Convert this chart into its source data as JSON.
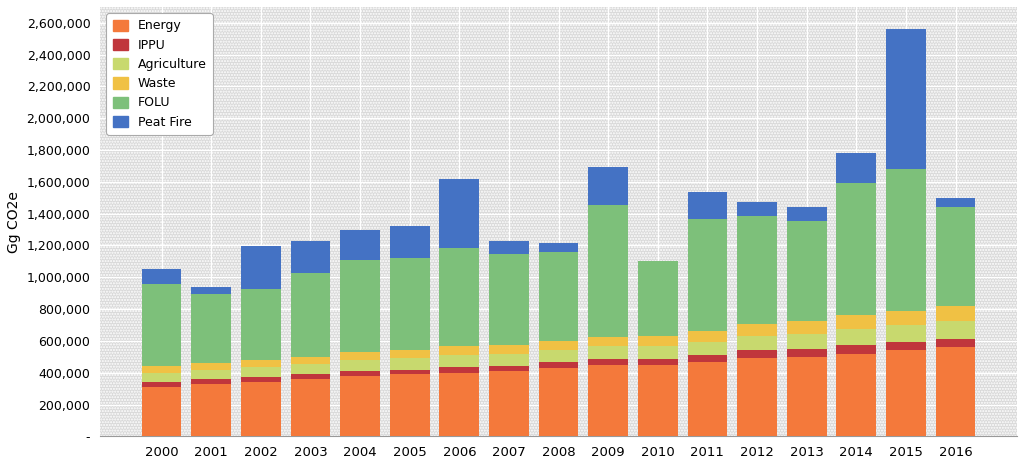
{
  "years": [
    2000,
    2001,
    2002,
    2003,
    2004,
    2005,
    2006,
    2007,
    2008,
    2009,
    2010,
    2011,
    2012,
    2013,
    2014,
    2015,
    2016
  ],
  "energy": [
    310000,
    330000,
    340000,
    360000,
    380000,
    390000,
    400000,
    410000,
    430000,
    450000,
    450000,
    470000,
    490000,
    500000,
    520000,
    540000,
    560000
  ],
  "ippu": [
    30000,
    30000,
    30000,
    30000,
    30000,
    30000,
    35000,
    35000,
    35000,
    35000,
    35000,
    40000,
    50000,
    50000,
    55000,
    55000,
    55000
  ],
  "agriculture": [
    60000,
    60000,
    65000,
    65000,
    70000,
    70000,
    75000,
    75000,
    75000,
    80000,
    80000,
    85000,
    90000,
    95000,
    100000,
    105000,
    110000
  ],
  "waste": [
    40000,
    42000,
    43000,
    44000,
    50000,
    52000,
    55000,
    57000,
    58000,
    60000,
    65000,
    70000,
    75000,
    80000,
    85000,
    90000,
    95000
  ],
  "folu": [
    520000,
    430000,
    450000,
    530000,
    580000,
    580000,
    620000,
    570000,
    560000,
    830000,
    470000,
    700000,
    680000,
    630000,
    830000,
    890000,
    620000
  ],
  "peat_fire": [
    90000,
    50000,
    270000,
    200000,
    190000,
    200000,
    430000,
    80000,
    60000,
    240000,
    0,
    170000,
    90000,
    90000,
    190000,
    880000,
    60000
  ],
  "colors": {
    "energy": "#F4793B",
    "ippu": "#C0363C",
    "agriculture": "#C8D96E",
    "waste": "#F0C144",
    "folu": "#7DC07A",
    "peat_fire": "#4472C4"
  },
  "legend_labels": [
    "Energy",
    "IPPU",
    "Agriculture",
    "Waste",
    "FOLU",
    "Peat Fire"
  ],
  "ylabel": "Gg CO2e",
  "ylim": [
    0,
    2700000
  ],
  "yticks": [
    0,
    200000,
    400000,
    600000,
    800000,
    1000000,
    1200000,
    1400000,
    1600000,
    1800000,
    2000000,
    2200000,
    2400000,
    2600000
  ],
  "ytick_labels": [
    "-",
    "200,000",
    "400,000",
    "600,000",
    "800,000",
    "1,000,000",
    "1,200,000",
    "1,400,000",
    "1,600,000",
    "1,800,000",
    "2,000,000",
    "2,200,000",
    "2,400,000",
    "2,600,000"
  ],
  "plot_bg_color": "#DCDCDC",
  "fig_bg_color": "#FFFFFF",
  "grid_color": "#FFFFFF",
  "bar_width": 0.8
}
